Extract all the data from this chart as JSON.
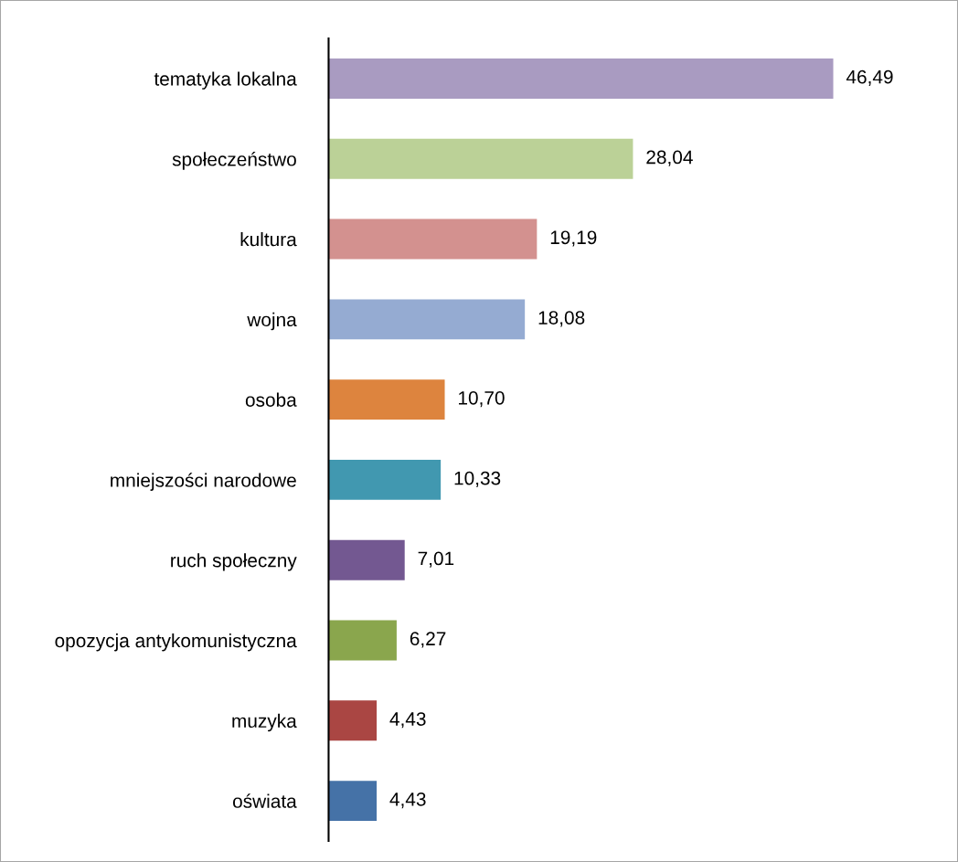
{
  "chart_data": {
    "type": "bar",
    "orientation": "horizontal",
    "tick_labels": "y",
    "categories": [
      "tematyka lokalna",
      "społeczeństwo",
      "kultura",
      "wojna",
      "osoba",
      "mniejszości narodowe",
      "ruch społeczny",
      "opozycja antykomunistyczna",
      "muzyka",
      "oświata"
    ],
    "values": [
      46.49,
      28.04,
      19.19,
      18.08,
      10.7,
      10.33,
      7.01,
      6.27,
      4.43,
      4.43
    ],
    "value_labels": [
      "46,49",
      "28,04",
      "19,19",
      "18,08",
      "10,70",
      "10,33",
      "7,01",
      "6,27",
      "4,43",
      "4,43"
    ],
    "colors": [
      "#a99bc1",
      "#bbd197",
      "#d3918f",
      "#95abd2",
      "#dd843e",
      "#4198b0",
      "#735891",
      "#8aa64d",
      "#aa4643",
      "#4572a7"
    ],
    "grid": false,
    "legend": false
  }
}
